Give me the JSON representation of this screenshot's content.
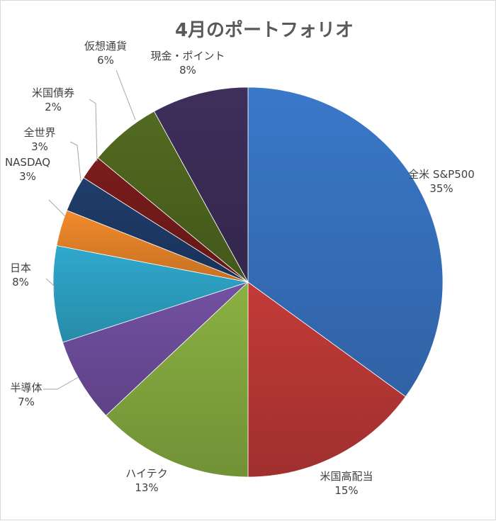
{
  "chart_data": {
    "type": "pie",
    "title": "4月のポートフォリオ",
    "legend": "none",
    "slices": [
      {
        "name": "全米 S&P500",
        "value": 35,
        "label": "35%",
        "color": "#3A78C9"
      },
      {
        "name": "米国高配当",
        "value": 15,
        "label": "15%",
        "color": "#C23B38"
      },
      {
        "name": "ハイテク",
        "value": 13,
        "label": "13%",
        "color": "#8AB142"
      },
      {
        "name": "半導体",
        "value": 7,
        "label": "7%",
        "color": "#7351A3"
      },
      {
        "name": "日本",
        "value": 8,
        "label": "8%",
        "color": "#2FA9CD"
      },
      {
        "name": "NASDAQ",
        "value": 3,
        "label": "3%",
        "color": "#F28A2B"
      },
      {
        "name": "全世界",
        "value": 3,
        "label": "3%",
        "color": "#1F3D6B"
      },
      {
        "name": "米国債券",
        "value": 2,
        "label": "2%",
        "color": "#7A1C1C"
      },
      {
        "name": "仮想通貨",
        "value": 6,
        "label": "6%",
        "color": "#526A20"
      },
      {
        "name": "現金・ポイント",
        "value": 8,
        "label": "8%",
        "color": "#3E2F5B"
      }
    ]
  }
}
